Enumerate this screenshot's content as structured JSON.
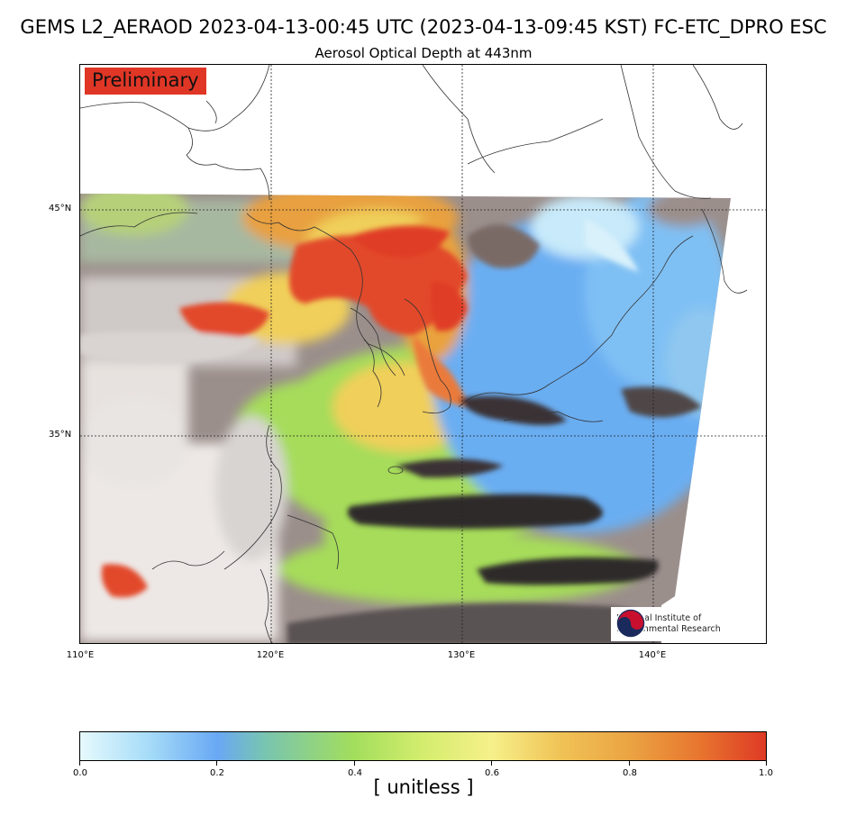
{
  "title": "GEMS L2_AERAOD 2023-04-13-00:45 UTC (2023-04-13-09:45 KST)  FC-ETC_DPRO ESC",
  "subtitle": "Aerosol Optical Depth at 443nm",
  "badge": "Preliminary",
  "logo": {
    "line1": "National Institute of",
    "line2": "Environmental Research",
    "icon": "nier-taegeuk-logo-icon"
  },
  "latitude_labels": [
    "45°N",
    "35°N"
  ],
  "longitude_labels": [
    "110°E",
    "120°E",
    "130°E",
    "140°E"
  ],
  "colorbar": {
    "min": 0.0,
    "max": 1.0,
    "tick_labels": [
      "0.0",
      "0.2",
      "0.4",
      "0.6",
      "0.8",
      "1.0"
    ],
    "unit_label": "[ unitless ]",
    "colors": [
      "#e6f9fd",
      "#69a8f4",
      "#a3de5c",
      "#f6f08a",
      "#eba443",
      "#de3a25"
    ]
  }
}
